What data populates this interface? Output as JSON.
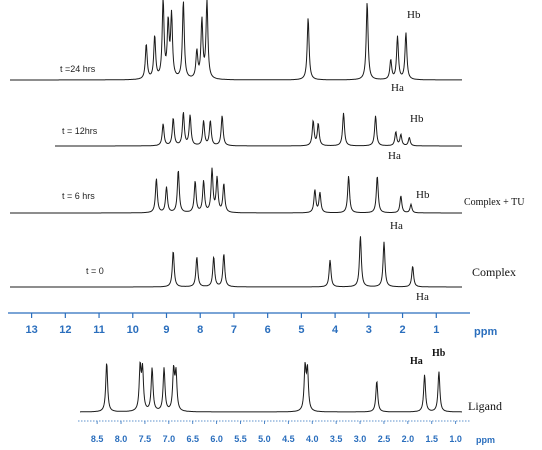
{
  "chart_data": [
    {
      "type": "line",
      "title": "",
      "xlabel": "ppm",
      "ylabel": "",
      "xlim": [
        13.7,
        0.0
      ],
      "x_reversed": true,
      "x_ticks": [
        "13",
        "12",
        "11",
        "10",
        "9",
        "8",
        "7",
        "6",
        "5",
        "4",
        "3",
        "2",
        "1"
      ],
      "legend": "none",
      "grid": false,
      "series": [
        {
          "label": "t =24 hrs",
          "peaks": [
            {
              "ppm": 9.6,
              "height": 0.45
            },
            {
              "ppm": 9.35,
              "height": 0.55
            },
            {
              "ppm": 9.1,
              "height": 1.0
            },
            {
              "ppm": 8.95,
              "height": 0.7
            },
            {
              "ppm": 8.85,
              "height": 0.8
            },
            {
              "ppm": 8.5,
              "height": 1.0
            },
            {
              "ppm": 8.1,
              "height": 0.35
            },
            {
              "ppm": 7.95,
              "height": 0.75
            },
            {
              "ppm": 7.8,
              "height": 1.0
            },
            {
              "ppm": 4.8,
              "height": 0.8
            },
            {
              "ppm": 3.05,
              "height": 1.0
            },
            {
              "ppm": 2.35,
              "height": 0.25
            },
            {
              "ppm": 2.15,
              "height": 0.55
            },
            {
              "ppm": 1.9,
              "height": 0.6
            }
          ],
          "annotations": [
            "Ha",
            "Hb"
          ]
        },
        {
          "label": "t = 12hrs",
          "peaks": [
            {
              "ppm": 9.1,
              "height": 0.4
            },
            {
              "ppm": 8.8,
              "height": 0.5
            },
            {
              "ppm": 8.5,
              "height": 0.6
            },
            {
              "ppm": 8.3,
              "height": 0.55
            },
            {
              "ppm": 7.9,
              "height": 0.45
            },
            {
              "ppm": 7.7,
              "height": 0.45
            },
            {
              "ppm": 7.35,
              "height": 0.55
            },
            {
              "ppm": 4.65,
              "height": 0.45
            },
            {
              "ppm": 4.5,
              "height": 0.4
            },
            {
              "ppm": 3.75,
              "height": 0.6
            },
            {
              "ppm": 2.8,
              "height": 0.55
            },
            {
              "ppm": 2.2,
              "height": 0.25
            },
            {
              "ppm": 2.05,
              "height": 0.2
            },
            {
              "ppm": 1.8,
              "height": 0.15
            }
          ],
          "annotations": [
            "Ha",
            "Hb"
          ]
        },
        {
          "label": "t = 6 hrs",
          "peaks": [
            {
              "ppm": 9.3,
              "height": 0.6
            },
            {
              "ppm": 9.0,
              "height": 0.45
            },
            {
              "ppm": 8.65,
              "height": 0.75
            },
            {
              "ppm": 8.15,
              "height": 0.55
            },
            {
              "ppm": 7.9,
              "height": 0.55
            },
            {
              "ppm": 7.65,
              "height": 0.75
            },
            {
              "ppm": 7.5,
              "height": 0.6
            },
            {
              "ppm": 7.3,
              "height": 0.5
            },
            {
              "ppm": 4.6,
              "height": 0.4
            },
            {
              "ppm": 4.45,
              "height": 0.35
            },
            {
              "ppm": 3.6,
              "height": 0.65
            },
            {
              "ppm": 2.75,
              "height": 0.65
            },
            {
              "ppm": 2.05,
              "height": 0.3
            },
            {
              "ppm": 1.75,
              "height": 0.15
            }
          ],
          "annotations": [
            "Ha",
            "Hb"
          ],
          "side_label": "Complex + TU"
        },
        {
          "label": "t = 0",
          "peaks": [
            {
              "ppm": 8.8,
              "height": 0.6
            },
            {
              "ppm": 8.1,
              "height": 0.5
            },
            {
              "ppm": 7.6,
              "height": 0.5
            },
            {
              "ppm": 7.3,
              "height": 0.55
            },
            {
              "ppm": 4.15,
              "height": 0.45
            },
            {
              "ppm": 3.25,
              "height": 0.85
            },
            {
              "ppm": 2.55,
              "height": 0.75
            },
            {
              "ppm": 1.7,
              "height": 0.35
            }
          ],
          "annotations": [
            "Ha"
          ],
          "side_label": "Complex"
        }
      ]
    },
    {
      "type": "line",
      "title": "",
      "xlabel": "ppm",
      "ylabel": "",
      "xlim": [
        8.9,
        0.7
      ],
      "x_reversed": true,
      "x_ticks": [
        "8.5",
        "8.0",
        "7.5",
        "7.0",
        "6.5",
        "6.0",
        "5.5",
        "5.0",
        "4.5",
        "4.0",
        "3.5",
        "3.0",
        "2.5",
        "2.0",
        "1.5",
        "1.0"
      ],
      "legend": "none",
      "grid": false,
      "series": [
        {
          "label": "Ligand",
          "peaks": [
            {
              "ppm": 8.3,
              "height": 0.8
            },
            {
              "ppm": 7.6,
              "height": 0.7
            },
            {
              "ppm": 7.55,
              "height": 0.65
            },
            {
              "ppm": 7.35,
              "height": 0.7
            },
            {
              "ppm": 7.1,
              "height": 0.7
            },
            {
              "ppm": 6.9,
              "height": 0.65
            },
            {
              "ppm": 6.85,
              "height": 0.6
            },
            {
              "ppm": 4.15,
              "height": 0.7
            },
            {
              "ppm": 4.1,
              "height": 0.65
            },
            {
              "ppm": 2.65,
              "height": 0.5
            },
            {
              "ppm": 1.65,
              "height": 0.6
            },
            {
              "ppm": 1.35,
              "height": 0.65
            }
          ],
          "annotations": [
            "Ha",
            "Hb"
          ]
        }
      ]
    }
  ]
}
